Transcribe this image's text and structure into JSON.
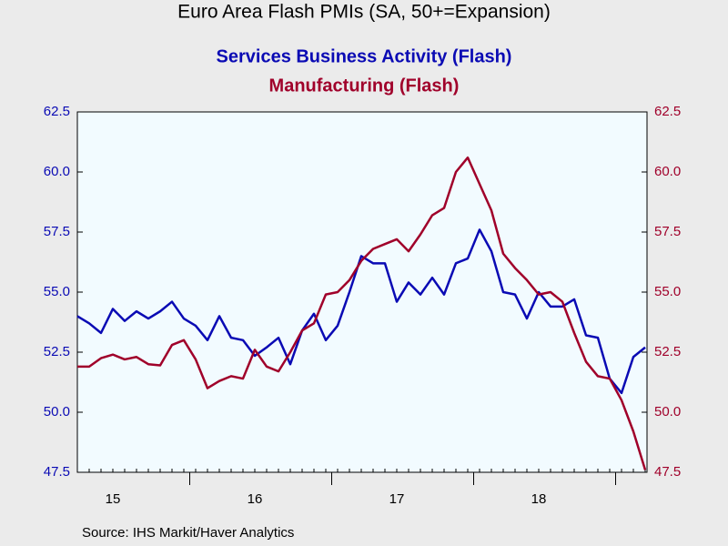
{
  "chart_data": {
    "type": "line",
    "title": "Euro Area Flash PMIs (SA, 50+=Expansion)",
    "source": "Source:  IHS Markit/Haver Analytics",
    "categories": [
      null,
      null,
      null,
      "15",
      null,
      null,
      null,
      null,
      null,
      null,
      null,
      null,
      null,
      null,
      null,
      "16",
      null,
      null,
      null,
      null,
      null,
      null,
      null,
      null,
      null,
      null,
      null,
      "17",
      null,
      null,
      null,
      null,
      null,
      null,
      null,
      null,
      null,
      null,
      null,
      "18",
      null,
      null,
      null,
      null,
      null,
      null,
      null,
      null,
      null
    ],
    "series": [
      {
        "name": "Services Business Activity (Flash)",
        "color": "#0a0ab4",
        "axis": "y",
        "values": [
          54.0,
          53.7,
          53.3,
          54.3,
          53.8,
          54.2,
          53.9,
          54.2,
          54.6,
          53.9,
          53.6,
          53.0,
          54.0,
          53.1,
          53.0,
          52.35,
          52.7,
          53.1,
          52.0,
          53.4,
          54.1,
          53.0,
          53.6,
          55.0,
          56.5,
          56.2,
          56.2,
          54.6,
          55.4,
          54.9,
          55.6,
          54.9,
          56.2,
          56.4,
          57.6,
          56.7,
          55.0,
          54.9,
          53.9,
          55.0,
          54.4,
          54.4,
          54.7,
          53.2,
          53.1,
          51.4,
          50.8,
          52.3,
          52.7
        ]
      },
      {
        "name": "Manufacturing (Flash)",
        "color": "#a0002a",
        "axis": "y2",
        "values": [
          51.9,
          51.9,
          52.25,
          52.4,
          52.2,
          52.3,
          52.0,
          51.95,
          52.8,
          53.0,
          52.2,
          51.0,
          51.3,
          51.5,
          51.4,
          52.6,
          51.9,
          51.7,
          52.5,
          53.4,
          53.7,
          54.9,
          55.0,
          55.5,
          56.3,
          56.8,
          57.0,
          57.2,
          56.7,
          57.4,
          58.2,
          58.5,
          60.0,
          60.6,
          59.5,
          58.4,
          56.6,
          56.0,
          55.5,
          54.9,
          55.0,
          54.6,
          53.3,
          52.1,
          51.5,
          51.4,
          50.5,
          49.2,
          47.6
        ]
      }
    ],
    "ylim": [
      47.5,
      62.5
    ],
    "yticks": [
      {
        "value": 47.5,
        "label": "47.5"
      },
      {
        "value": 50,
        "label": "50.0"
      },
      {
        "value": 52.5,
        "label": "52.5"
      },
      {
        "value": 55,
        "label": "55.0"
      },
      {
        "value": 57.5,
        "label": "57.5"
      },
      {
        "value": 60,
        "label": "60.0"
      },
      {
        "value": 62.5,
        "label": "62.5"
      }
    ],
    "y2lim": [
      47.5,
      62.5
    ],
    "y2ticks": [
      {
        "value": 47.5,
        "label": "47.5"
      },
      {
        "value": 50,
        "label": "50.0"
      },
      {
        "value": 52.5,
        "label": "52.5"
      },
      {
        "value": 55,
        "label": "55.0"
      },
      {
        "value": 57.5,
        "label": "57.5"
      },
      {
        "value": 60,
        "label": "60.0"
      },
      {
        "value": 62.5,
        "label": "62.5"
      }
    ],
    "grid": false
  }
}
